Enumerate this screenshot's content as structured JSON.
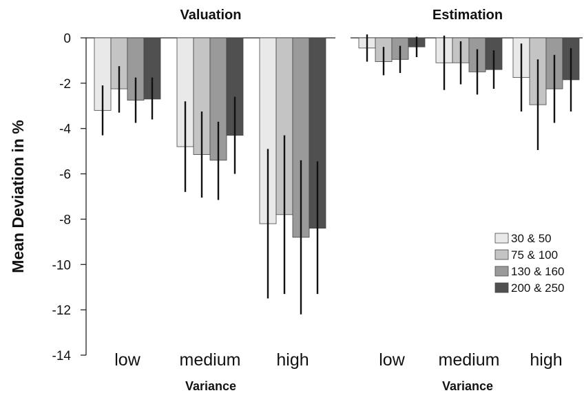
{
  "chart_data": {
    "type": "bar",
    "ylabel": "Mean Deviation in %",
    "ylim": [
      -14,
      0
    ],
    "yticks": [
      0,
      -2,
      -4,
      -6,
      -8,
      -10,
      -12,
      -14
    ],
    "legend_position": "bottom-right",
    "series": [
      {
        "name": "30 & 50",
        "color": "#e9e9e9"
      },
      {
        "name": "75 & 100",
        "color": "#c4c4c4"
      },
      {
        "name": "130 & 160",
        "color": "#9a9a9a"
      },
      {
        "name": "200 & 250",
        "color": "#505050"
      }
    ],
    "panels": [
      {
        "title": "Valuation",
        "xlabel": "Variance",
        "categories": [
          "low",
          "medium",
          "high"
        ],
        "values": [
          [
            -3.2,
            -2.25,
            -2.75,
            -2.7
          ],
          [
            -4.8,
            -5.15,
            -5.4,
            -4.3
          ],
          [
            -8.2,
            -7.8,
            -8.8,
            -8.4
          ]
        ],
        "errors": [
          [
            [
              -4.3,
              -2.1
            ],
            [
              -3.3,
              -1.25
            ],
            [
              -3.75,
              -1.75
            ],
            [
              -3.6,
              -1.75
            ]
          ],
          [
            [
              -6.8,
              -2.8
            ],
            [
              -7.05,
              -3.25
            ],
            [
              -7.15,
              -3.7
            ],
            [
              -6.0,
              -2.6
            ]
          ],
          [
            [
              -11.5,
              -4.9
            ],
            [
              -11.3,
              -4.3
            ],
            [
              -12.2,
              -5.4
            ],
            [
              -11.3,
              -5.45
            ]
          ]
        ]
      },
      {
        "title": "Estimation",
        "xlabel": "Variance",
        "categories": [
          "low",
          "medium",
          "high"
        ],
        "values": [
          [
            -0.45,
            -1.05,
            -0.95,
            -0.4
          ],
          [
            -1.1,
            -1.1,
            -1.5,
            -1.4
          ],
          [
            -1.75,
            -2.95,
            -2.25,
            -1.85
          ]
        ],
        "errors": [
          [
            [
              -1.05,
              0.15
            ],
            [
              -1.65,
              -0.4
            ],
            [
              -1.55,
              -0.35
            ],
            [
              -0.85,
              0.05
            ]
          ],
          [
            [
              -2.3,
              0.1
            ],
            [
              -2.05,
              -0.15
            ],
            [
              -2.5,
              -0.5
            ],
            [
              -2.25,
              -0.55
            ]
          ],
          [
            [
              -3.25,
              -0.25
            ],
            [
              -4.95,
              -0.95
            ],
            [
              -3.75,
              -0.75
            ],
            [
              -3.25,
              -0.45
            ]
          ]
        ]
      }
    ]
  }
}
